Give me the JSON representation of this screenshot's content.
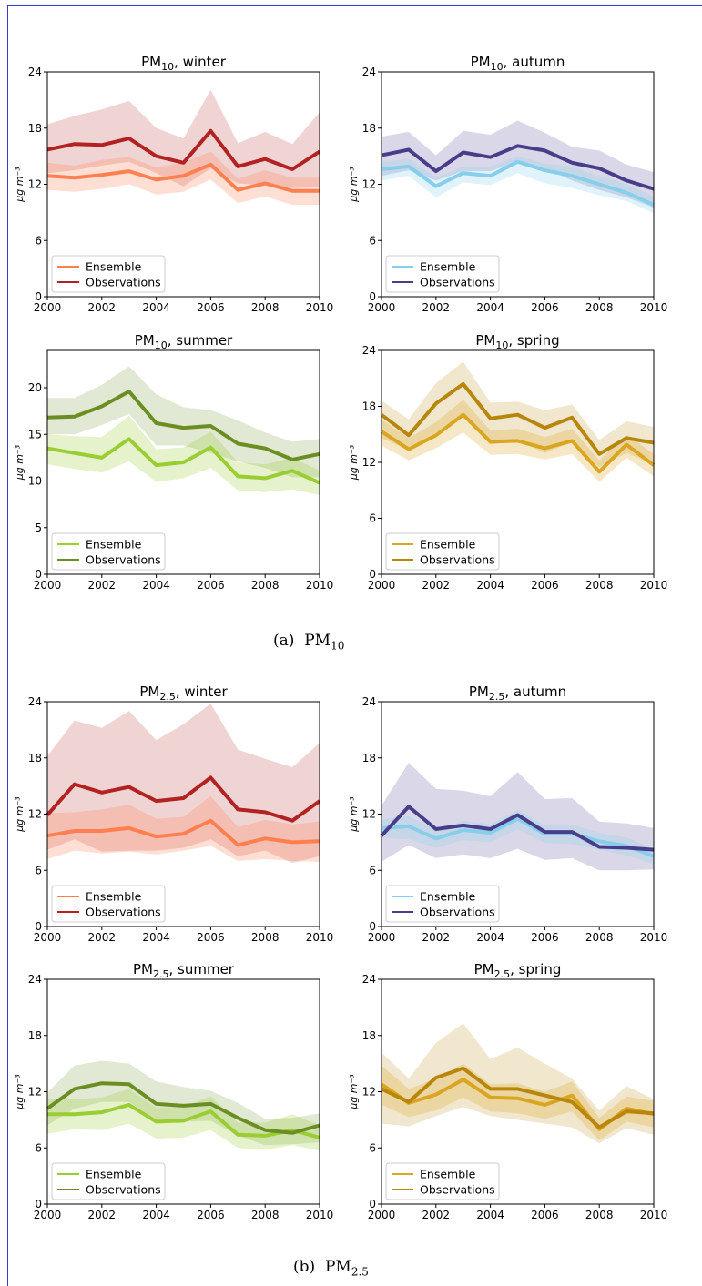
{
  "captions": {
    "a": {
      "label": "(a)",
      "text": "PM",
      "sub": "10"
    },
    "b": {
      "label": "(b)",
      "text": "PM",
      "sub": "2.5"
    }
  },
  "colors": {
    "winter": {
      "ens": "#ff7f50",
      "obs": "#b22222"
    },
    "autumn": {
      "ens": "#87ceeb",
      "obs": "#483d8b"
    },
    "summer": {
      "ens": "#9acd32",
      "obs": "#6b8e23"
    },
    "spring": {
      "ens": "#daa520",
      "obs": "#b8860b"
    }
  },
  "chart_data": [
    {
      "type": "line",
      "id": "pm10-winter",
      "title": {
        "pre": "PM",
        "sub": "10",
        "post": ", winter"
      },
      "season": "winter",
      "xlabel": "",
      "ylabel": "μg m⁻³",
      "x": [
        2000,
        2001,
        2002,
        2003,
        2004,
        2005,
        2006,
        2007,
        2008,
        2009,
        2010
      ],
      "xticks": [
        2000,
        2002,
        2004,
        2006,
        2008,
        2010
      ],
      "ylim": [
        0,
        24
      ],
      "yticks": [
        0,
        6,
        12,
        18,
        24
      ],
      "legend": {
        "position": "lower-left",
        "entries": [
          "Ensemble",
          "Observations"
        ]
      },
      "series": [
        {
          "name": "Ensemble",
          "values": [
            12.9,
            12.7,
            13.0,
            13.4,
            12.5,
            12.9,
            14.1,
            11.4,
            12.1,
            11.3,
            11.3
          ],
          "lower": [
            11.4,
            11.2,
            11.5,
            12.0,
            10.9,
            11.2,
            12.5,
            10.0,
            10.7,
            9.8,
            9.8
          ],
          "upper": [
            14.3,
            14.0,
            14.6,
            14.9,
            13.8,
            14.3,
            15.5,
            12.6,
            13.5,
            12.7,
            12.7
          ]
        },
        {
          "name": "Observations",
          "values": [
            15.7,
            16.3,
            16.2,
            16.9,
            15.0,
            14.3,
            17.7,
            13.9,
            14.7,
            13.6,
            15.5
          ],
          "lower": [
            13.2,
            13.5,
            14.0,
            14.4,
            13.2,
            11.8,
            13.7,
            12.1,
            11.9,
            11.6,
            11.7
          ],
          "upper": [
            18.4,
            19.3,
            20.0,
            20.9,
            18.0,
            16.9,
            22.1,
            16.4,
            17.6,
            16.3,
            19.7
          ]
        }
      ]
    },
    {
      "type": "line",
      "id": "pm10-autumn",
      "title": {
        "pre": "PM",
        "sub": "10",
        "post": ", autumn"
      },
      "season": "autumn",
      "xlabel": "",
      "ylabel": "μg m⁻³",
      "x": [
        2000,
        2001,
        2002,
        2003,
        2004,
        2005,
        2006,
        2007,
        2008,
        2009,
        2010
      ],
      "xticks": [
        2000,
        2002,
        2004,
        2006,
        2008,
        2010
      ],
      "ylim": [
        0,
        24
      ],
      "yticks": [
        0,
        6,
        12,
        18,
        24
      ],
      "legend": {
        "position": "lower-left",
        "entries": [
          "Ensemble",
          "Observations"
        ]
      },
      "series": [
        {
          "name": "Ensemble",
          "values": [
            13.6,
            13.9,
            11.8,
            13.2,
            12.9,
            14.4,
            13.5,
            12.9,
            12.0,
            11.1,
            9.8
          ],
          "lower": [
            12.4,
            12.9,
            10.6,
            12.2,
            11.9,
            13.2,
            12.1,
            11.6,
            10.8,
            10.2,
            8.9
          ],
          "upper": [
            14.4,
            14.7,
            12.7,
            13.9,
            13.9,
            15.0,
            14.2,
            13.9,
            12.9,
            12.0,
            10.7
          ]
        },
        {
          "name": "Observations",
          "values": [
            15.1,
            15.7,
            13.4,
            15.4,
            14.9,
            16.1,
            15.6,
            14.3,
            13.7,
            12.4,
            11.5
          ],
          "lower": [
            12.9,
            13.5,
            12.4,
            13.4,
            13.4,
            14.4,
            13.7,
            12.4,
            11.4,
            10.6,
            9.5
          ],
          "upper": [
            17.1,
            17.6,
            15.1,
            17.7,
            17.3,
            18.8,
            17.5,
            16.0,
            15.6,
            14.1,
            13.3
          ]
        }
      ]
    },
    {
      "type": "line",
      "id": "pm10-summer",
      "title": {
        "pre": "PM",
        "sub": "10",
        "post": ", summer"
      },
      "season": "summer",
      "xlabel": "",
      "ylabel": "μg m⁻³",
      "x": [
        2000,
        2001,
        2002,
        2003,
        2004,
        2005,
        2006,
        2007,
        2008,
        2009,
        2010
      ],
      "xticks": [
        2000,
        2002,
        2004,
        2006,
        2008,
        2010
      ],
      "ylim": [
        0,
        24
      ],
      "yticks": [
        0,
        5,
        10,
        15,
        20
      ],
      "legend": {
        "position": "lower-left",
        "entries": [
          "Ensemble",
          "Observations"
        ]
      },
      "series": [
        {
          "name": "Ensemble",
          "values": [
            13.5,
            13.0,
            12.5,
            14.5,
            11.7,
            12.0,
            13.6,
            10.5,
            10.3,
            11.1,
            9.8
          ],
          "lower": [
            11.8,
            11.3,
            10.9,
            12.1,
            9.9,
            10.3,
            11.4,
            9.0,
            8.8,
            9.1,
            8.5
          ],
          "upper": [
            15.0,
            14.8,
            14.7,
            17.0,
            13.4,
            13.6,
            15.3,
            12.0,
            11.8,
            12.5,
            11.1
          ]
        },
        {
          "name": "Observations",
          "values": [
            16.8,
            16.9,
            18.0,
            19.6,
            16.2,
            15.7,
            15.9,
            14.0,
            13.5,
            12.3,
            12.9
          ],
          "lower": [
            15.0,
            15.0,
            16.0,
            17.2,
            13.8,
            13.8,
            13.0,
            12.1,
            11.4,
            10.4,
            10.4
          ],
          "upper": [
            18.9,
            18.9,
            20.3,
            22.3,
            19.3,
            17.9,
            17.6,
            16.5,
            15.2,
            14.2,
            14.5
          ]
        }
      ]
    },
    {
      "type": "line",
      "id": "pm10-spring",
      "title": {
        "pre": "PM",
        "sub": "10",
        "post": ", spring"
      },
      "season": "spring",
      "xlabel": "",
      "ylabel": "μg m⁻³",
      "x": [
        2000,
        2001,
        2002,
        2003,
        2004,
        2005,
        2006,
        2007,
        2008,
        2009,
        2010
      ],
      "xticks": [
        2000,
        2002,
        2004,
        2006,
        2008,
        2010
      ],
      "ylim": [
        0,
        24
      ],
      "yticks": [
        0,
        6,
        12,
        18,
        24
      ],
      "legend": {
        "position": "lower-left",
        "entries": [
          "Ensemble",
          "Observations"
        ]
      },
      "series": [
        {
          "name": "Ensemble",
          "values": [
            15.3,
            13.4,
            14.9,
            17.1,
            14.2,
            14.3,
            13.5,
            14.3,
            11.0,
            13.9,
            11.7
          ],
          "lower": [
            13.8,
            12.2,
            13.5,
            15.2,
            12.8,
            12.9,
            12.3,
            12.9,
            9.9,
            12.5,
            10.5
          ],
          "upper": [
            16.6,
            14.6,
            16.3,
            18.7,
            15.4,
            15.6,
            14.7,
            15.6,
            12.2,
            15.0,
            12.9
          ]
        },
        {
          "name": "Observations",
          "values": [
            17.1,
            14.9,
            18.3,
            20.4,
            16.7,
            17.1,
            15.7,
            16.8,
            12.9,
            14.6,
            14.1
          ],
          "lower": [
            14.6,
            13.3,
            15.2,
            17.0,
            13.9,
            14.3,
            13.0,
            14.2,
            11.5,
            13.0,
            11.8
          ],
          "upper": [
            18.6,
            16.6,
            20.5,
            22.8,
            18.4,
            18.5,
            17.6,
            18.2,
            14.4,
            16.4,
            15.8
          ]
        }
      ]
    },
    {
      "type": "line",
      "id": "pm25-winter",
      "title": {
        "pre": "PM",
        "sub": "2.5",
        "post": ", winter"
      },
      "season": "winter",
      "xlabel": "",
      "ylabel": "μg m⁻³",
      "x": [
        2000,
        2001,
        2002,
        2003,
        2004,
        2005,
        2006,
        2007,
        2008,
        2009,
        2010
      ],
      "xticks": [
        2000,
        2002,
        2004,
        2006,
        2008,
        2010
      ],
      "ylim": [
        0,
        24
      ],
      "yticks": [
        0,
        6,
        12,
        18,
        24
      ],
      "legend": {
        "position": "lower-left",
        "entries": [
          "Ensemble",
          "Observations"
        ]
      },
      "series": [
        {
          "name": "Ensemble",
          "values": [
            9.7,
            10.2,
            10.2,
            10.5,
            9.6,
            9.9,
            11.3,
            8.7,
            9.4,
            9.0,
            9.1
          ],
          "lower": [
            7.2,
            8.1,
            7.8,
            8.0,
            7.7,
            8.1,
            8.6,
            7.0,
            7.2,
            7.0,
            6.9
          ],
          "upper": [
            12.1,
            12.2,
            12.5,
            13.0,
            11.5,
            11.7,
            13.9,
            10.6,
            11.4,
            10.9,
            11.2
          ]
        },
        {
          "name": "Observations",
          "values": [
            11.9,
            15.2,
            14.3,
            14.9,
            13.4,
            13.7,
            15.9,
            12.5,
            12.2,
            11.3,
            13.4
          ],
          "lower": [
            8.2,
            9.3,
            8.0,
            8.1,
            8.1,
            8.4,
            9.3,
            7.5,
            8.1,
            6.8,
            7.5
          ],
          "upper": [
            18.2,
            22.0,
            21.2,
            23.0,
            19.9,
            21.6,
            23.8,
            18.9,
            17.9,
            17.0,
            19.6
          ]
        }
      ]
    },
    {
      "type": "line",
      "id": "pm25-autumn",
      "title": {
        "pre": "PM",
        "sub": "2.5",
        "post": ", autumn"
      },
      "season": "autumn",
      "xlabel": "",
      "ylabel": "μg m⁻³",
      "x": [
        2000,
        2001,
        2002,
        2003,
        2004,
        2005,
        2006,
        2007,
        2008,
        2009,
        2010
      ],
      "xticks": [
        2000,
        2002,
        2004,
        2006,
        2008,
        2010
      ],
      "ylim": [
        0,
        24
      ],
      "yticks": [
        0,
        6,
        12,
        18,
        24
      ],
      "legend": {
        "position": "lower-left",
        "entries": [
          "Ensemble",
          "Observations"
        ]
      },
      "series": [
        {
          "name": "Ensemble",
          "values": [
            10.5,
            10.7,
            9.4,
            10.3,
            10.0,
            11.5,
            9.9,
            9.9,
            9.1,
            8.6,
            7.5
          ],
          "lower": [
            9.5,
            9.3,
            8.4,
            9.2,
            9.0,
            10.4,
            8.9,
            8.8,
            8.2,
            7.6,
            6.7
          ],
          "upper": [
            11.4,
            11.8,
            10.3,
            11.3,
            10.9,
            12.5,
            10.8,
            10.9,
            10.0,
            9.5,
            8.3
          ]
        },
        {
          "name": "Observations",
          "values": [
            9.7,
            12.8,
            10.4,
            10.8,
            10.4,
            11.9,
            10.1,
            10.1,
            8.5,
            8.4,
            8.2
          ],
          "lower": [
            6.9,
            8.7,
            7.3,
            7.7,
            7.3,
            8.3,
            7.1,
            7.3,
            6.0,
            6.0,
            6.1
          ],
          "upper": [
            12.9,
            17.5,
            14.7,
            14.5,
            13.9,
            16.5,
            13.6,
            13.7,
            11.2,
            11.0,
            10.5
          ]
        }
      ]
    },
    {
      "type": "line",
      "id": "pm25-summer",
      "title": {
        "pre": "PM",
        "sub": "2.5",
        "post": ", summer"
      },
      "season": "summer",
      "xlabel": "",
      "ylabel": "μg m⁻³",
      "x": [
        2000,
        2001,
        2002,
        2003,
        2004,
        2005,
        2006,
        2007,
        2008,
        2009,
        2010
      ],
      "xticks": [
        2000,
        2002,
        2004,
        2006,
        2008,
        2010
      ],
      "ylim": [
        0,
        24
      ],
      "yticks": [
        0,
        6,
        12,
        18,
        24
      ],
      "legend": {
        "position": "lower-left",
        "entries": [
          "Ensemble",
          "Observations"
        ]
      },
      "series": [
        {
          "name": "Ensemble",
          "values": [
            9.6,
            9.6,
            9.8,
            10.6,
            8.8,
            8.9,
            9.9,
            7.4,
            7.3,
            7.9,
            7.1
          ],
          "lower": [
            7.5,
            8.0,
            7.9,
            8.6,
            7.0,
            7.1,
            7.9,
            6.0,
            5.8,
            6.3,
            5.7
          ],
          "upper": [
            11.3,
            11.2,
            11.4,
            12.3,
            10.3,
            10.4,
            11.5,
            8.7,
            8.7,
            9.6,
            8.4
          ]
        },
        {
          "name": "Observations",
          "values": [
            10.2,
            12.3,
            12.9,
            12.8,
            10.7,
            10.5,
            10.7,
            9.2,
            7.9,
            7.6,
            8.4
          ],
          "lower": [
            8.4,
            10.2,
            10.9,
            10.9,
            9.0,
            8.8,
            8.9,
            7.3,
            6.3,
            6.4,
            6.6
          ],
          "upper": [
            11.9,
            14.8,
            15.3,
            15.0,
            13.1,
            12.5,
            12.1,
            10.8,
            9.1,
            9.2,
            9.7
          ]
        }
      ]
    },
    {
      "type": "line",
      "id": "pm25-spring",
      "title": {
        "pre": "PM",
        "sub": "2.5",
        "post": ", spring"
      },
      "season": "spring",
      "xlabel": "",
      "ylabel": "μg m⁻³",
      "x": [
        2000,
        2001,
        2002,
        2003,
        2004,
        2005,
        2006,
        2007,
        2008,
        2009,
        2010
      ],
      "xticks": [
        2000,
        2002,
        2004,
        2006,
        2008,
        2010
      ],
      "ylim": [
        0,
        24
      ],
      "yticks": [
        0,
        6,
        12,
        18,
        24
      ],
      "legend": {
        "position": "lower-left",
        "entries": [
          "Ensemble",
          "Observations"
        ]
      },
      "series": [
        {
          "name": "Ensemble",
          "values": [
            12.8,
            10.8,
            11.7,
            13.3,
            11.4,
            11.3,
            10.6,
            11.6,
            8.0,
            10.2,
            9.6
          ],
          "lower": [
            10.6,
            9.3,
            10.0,
            11.4,
            9.9,
            9.7,
            9.1,
            9.9,
            6.8,
            8.8,
            8.2
          ],
          "upper": [
            14.8,
            12.3,
            13.4,
            15.0,
            12.8,
            12.9,
            12.0,
            13.1,
            9.2,
            11.5,
            11.0
          ]
        },
        {
          "name": "Observations",
          "values": [
            12.3,
            10.9,
            13.5,
            14.5,
            12.3,
            12.3,
            11.6,
            10.9,
            8.2,
            9.9,
            9.7
          ],
          "lower": [
            8.6,
            8.3,
            9.4,
            10.4,
            9.4,
            9.0,
            8.6,
            8.2,
            6.5,
            8.1,
            7.4
          ],
          "upper": [
            16.2,
            13.4,
            17.2,
            19.3,
            15.5,
            16.7,
            15.0,
            13.4,
            10.0,
            12.6,
            11.2
          ]
        }
      ]
    }
  ]
}
